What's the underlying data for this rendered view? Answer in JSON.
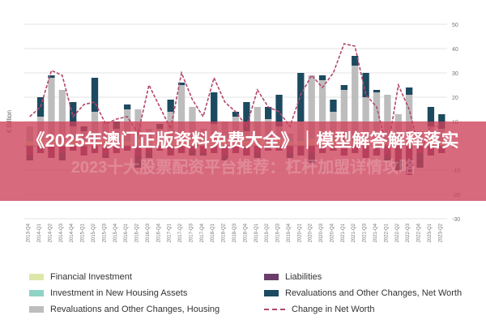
{
  "chart_data": {
    "type": "bar",
    "title": "",
    "xlabel": "",
    "ylabel": "€ Billion",
    "ylim": [
      -30,
      50
    ],
    "yticks": [
      50,
      40,
      30,
      20,
      10,
      0,
      -10,
      -20,
      -30
    ],
    "categories": [
      "2013-Q4",
      "2014-Q1",
      "2014-Q2",
      "2014-Q3",
      "2014-Q4",
      "2015-Q1",
      "2015-Q2",
      "2015-Q3",
      "2015-Q4",
      "2016-Q1",
      "2016-Q2",
      "2016-Q3",
      "2016-Q4",
      "2017-Q1",
      "2017-Q2",
      "2017-Q3",
      "2017-Q4",
      "2018-Q1",
      "2018-Q2",
      "2018-Q3",
      "2018-Q4",
      "2019-Q1",
      "2019-Q2",
      "2019-Q3",
      "2019-Q4",
      "2020-Q1",
      "2020-Q2",
      "2020-Q3",
      "2020-Q4",
      "2021-Q1",
      "2021-Q2",
      "2021-Q3",
      "2021-Q4",
      "2022-Q1",
      "2022-Q2",
      "2022-Q3",
      "2022-Q4",
      "2023-Q1",
      "2023-Q2"
    ],
    "series": [
      {
        "name": "Financial Investment",
        "values": [
          2,
          3,
          2,
          2,
          3,
          2,
          2,
          3,
          2,
          2,
          3,
          2,
          2,
          3,
          2,
          3,
          2,
          2,
          3,
          2,
          2,
          3,
          2,
          3,
          2,
          2,
          3,
          2,
          3,
          2,
          2,
          3,
          2,
          2,
          3,
          2,
          2,
          3,
          2
        ]
      },
      {
        "name": "Investment in New Housing Assets",
        "values": [
          1,
          1,
          1,
          1,
          1,
          1,
          1,
          1,
          1,
          1,
          1,
          1,
          1,
          1,
          1,
          1,
          1,
          1,
          1,
          1,
          1,
          1,
          1,
          1,
          1,
          1,
          1,
          1,
          1,
          1,
          1,
          1,
          1,
          1,
          1,
          1,
          1,
          1,
          1
        ]
      },
      {
        "name": "Revaluations and Other Changes, Housing",
        "values": [
          5,
          8,
          25,
          20,
          4,
          3,
          11,
          6,
          4,
          12,
          11,
          4,
          4,
          10,
          22,
          12,
          4,
          6,
          6,
          9,
          3,
          12,
          8,
          4,
          2,
          7,
          25,
          24,
          10,
          20,
          30,
          16,
          19,
          18,
          9,
          18,
          3,
          4,
          4
        ]
      },
      {
        "name": "Liabilities",
        "values": [
          -4,
          -3,
          -5,
          -3,
          -2,
          -4,
          -3,
          -4,
          -3,
          -2,
          -4,
          -3,
          -2,
          -4,
          -3,
          -2,
          -3,
          -3,
          -4,
          -3,
          -4,
          -3,
          -2,
          -2,
          -3,
          -4,
          -3,
          -3,
          -2,
          -4,
          -3,
          -5,
          -4,
          -4,
          -6,
          -12,
          -3,
          -4,
          -3
        ]
      },
      {
        "name": "Revaluations and Other Changes, Net Worth",
        "values": [
          -2,
          8,
          1,
          -3,
          10,
          2,
          14,
          -1,
          3,
          2,
          -5,
          -2,
          2,
          5,
          1,
          -2,
          -1,
          13,
          -2,
          2,
          12,
          -2,
          5,
          13,
          -2,
          20,
          -4,
          2,
          5,
          2,
          4,
          10,
          1,
          -2,
          -4,
          3,
          -6,
          8,
          6
        ]
      },
      {
        "name": "Change in Net Worth",
        "values": [
          12,
          16,
          31,
          29,
          12,
          17,
          18,
          9,
          11,
          12,
          5,
          25,
          16,
          7,
          30,
          19,
          12,
          28,
          18,
          14,
          8,
          23,
          16,
          14,
          8,
          21,
          29,
          24,
          30,
          42,
          41,
          21,
          16,
          -2,
          25,
          15,
          -3,
          8,
          8
        ]
      }
    ],
    "colors": {
      "Financial Investment": "#dce7a8",
      "Investment in New Housing Assets": "#8fd2c6",
      "Revaluations and Other Changes, Housing": "#bdbdbd",
      "Liabilities": "#6a3d6a",
      "Revaluations and Other Changes, Net Worth": "#1c4a60",
      "Change in Net Worth": "#b3476d"
    },
    "grid": true,
    "legend_position": "bottom"
  },
  "banner": {
    "title": "《2025年澳门正版资料免费大全》｜模型解答解释落实",
    "watermark": "2023十大股票配资平台推荐：杠杆加盟详情攻略"
  }
}
